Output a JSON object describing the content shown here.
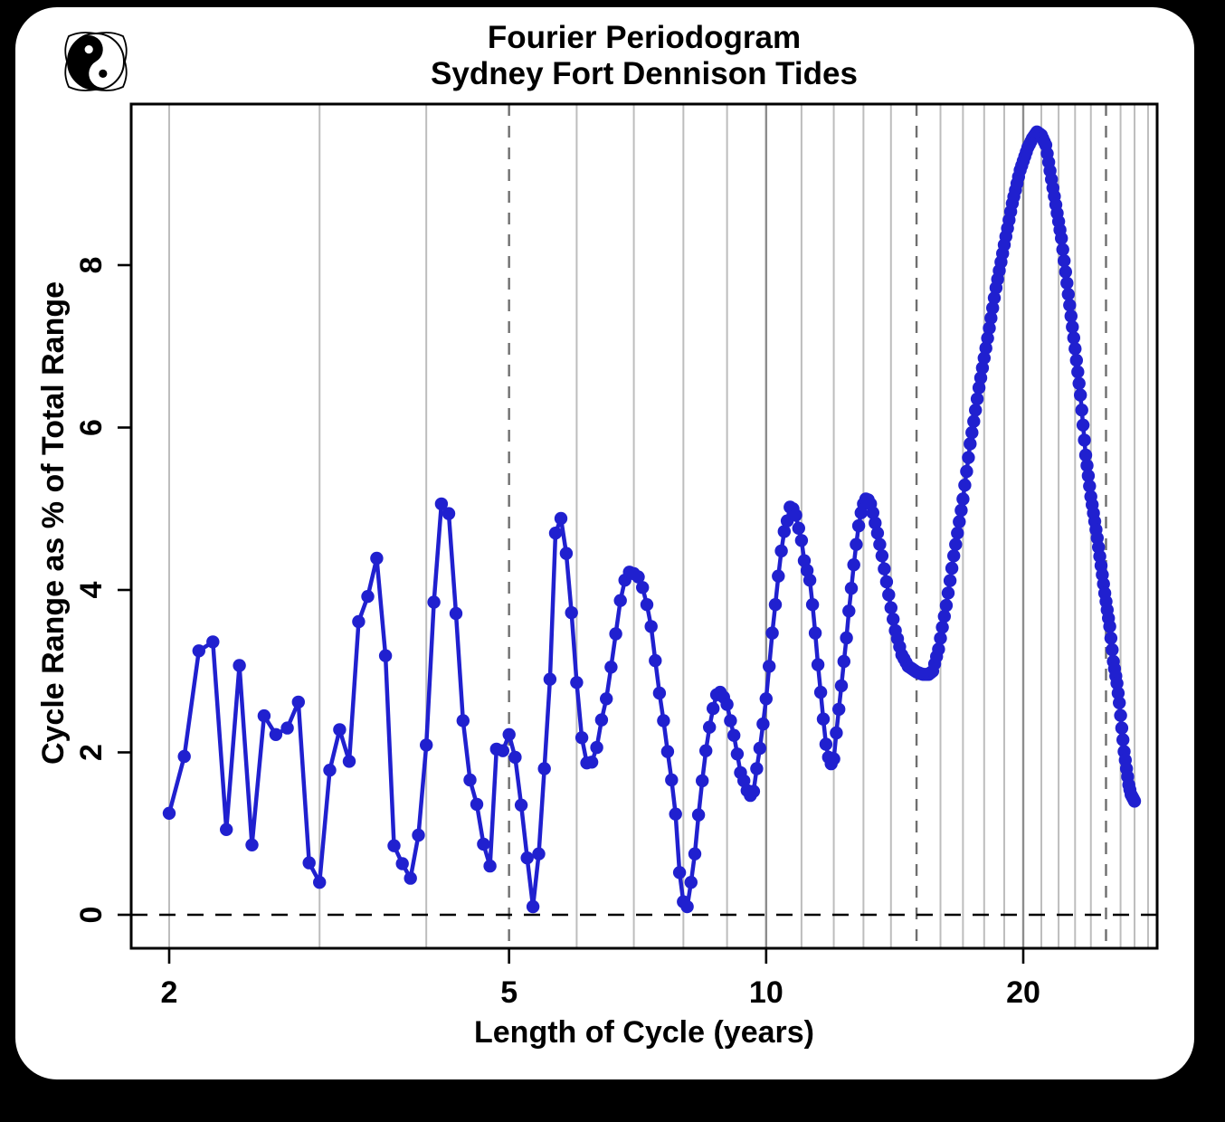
{
  "title": {
    "line1": "Fourier Periodogram",
    "line2": "Sydney Fort Dennison Tides"
  },
  "axes": {
    "x": {
      "label": "Length of Cycle (years)",
      "ticks": [
        2,
        5,
        10,
        20
      ],
      "scale": "log10",
      "range_years": [
        1.8,
        28.3
      ]
    },
    "y": {
      "label": "Cycle Range as % of Total Range",
      "ticks": [
        0,
        2,
        4,
        6,
        8
      ],
      "range": [
        -0.45,
        9.98
      ]
    }
  },
  "gridlines": {
    "years_solid": [
      2,
      3,
      4,
      6,
      7,
      8,
      9,
      11,
      12,
      13,
      14,
      16,
      17,
      18,
      19,
      21,
      22,
      23,
      24,
      26,
      27,
      28
    ],
    "years_dark": [
      10,
      20
    ],
    "years_dashed": [
      5,
      15,
      25
    ]
  },
  "zero_reference_line": {
    "value": 0,
    "style": "dashed",
    "color": "#000000"
  },
  "logo": {
    "name": "yin-yang owl logo"
  },
  "colors": {
    "series": "#2020cf",
    "grid": "#bdbdbd",
    "grid_dark": "#8d8d8d",
    "grid_dashed": "#6f6f6f",
    "box": "#000000",
    "background": "#ffffff",
    "frame": "#000000"
  },
  "chart_data": {
    "type": "line",
    "title": "Fourier Periodogram",
    "subtitle": "Sydney Fort Dennison Tides",
    "xlabel": "Length of Cycle (years)",
    "ylabel": "Cycle Range as % of Total Range",
    "x_scale": "log10",
    "xlim_years": [
      1.8,
      28.3
    ],
    "ylim": [
      -0.45,
      9.98
    ],
    "points": "one point per monthly cycle length, months 24 to 324 (2 to 27 years), linearly interpolated between keypoints",
    "month_range": [
      24,
      324
    ],
    "peak": {
      "cycle_years": 20.7,
      "value": 9.64
    },
    "keypoints_month_value": [
      [
        24,
        1.25
      ],
      [
        25,
        1.95
      ],
      [
        26,
        3.25
      ],
      [
        27,
        3.36
      ],
      [
        28,
        1.05
      ],
      [
        29,
        3.07
      ],
      [
        30,
        0.86
      ],
      [
        31,
        2.45
      ],
      [
        32,
        2.22
      ],
      [
        33,
        2.3
      ],
      [
        34,
        2.62
      ],
      [
        35,
        0.64
      ],
      [
        36,
        0.4
      ],
      [
        37,
        1.78
      ],
      [
        38,
        2.28
      ],
      [
        39,
        1.89
      ],
      [
        40,
        3.61
      ],
      [
        41,
        3.92
      ],
      [
        42,
        4.39
      ],
      [
        43,
        3.19
      ],
      [
        44,
        0.85
      ],
      [
        45,
        0.63
      ],
      [
        46,
        0.45
      ],
      [
        47,
        0.98
      ],
      [
        48,
        2.09
      ],
      [
        49,
        3.85
      ],
      [
        50,
        5.06
      ],
      [
        51,
        4.94
      ],
      [
        52,
        3.71
      ],
      [
        53,
        2.39
      ],
      [
        54,
        1.66
      ],
      [
        55,
        1.36
      ],
      [
        56,
        0.87
      ],
      [
        57,
        0.6
      ],
      [
        58,
        2.04
      ],
      [
        59,
        2.02
      ],
      [
        60,
        2.22
      ],
      [
        61,
        1.94
      ],
      [
        62,
        1.35
      ],
      [
        63,
        0.7
      ],
      [
        64,
        0.1
      ],
      [
        65,
        0.75
      ],
      [
        66,
        1.8
      ],
      [
        67,
        2.9
      ],
      [
        68,
        4.7
      ],
      [
        69,
        4.88
      ],
      [
        70,
        4.45
      ],
      [
        71,
        3.72
      ],
      [
        72,
        2.86
      ],
      [
        73,
        2.18
      ],
      [
        74,
        1.87
      ],
      [
        75,
        1.88
      ],
      [
        76,
        2.06
      ],
      [
        77,
        2.4
      ],
      [
        78,
        2.66
      ],
      [
        79,
        3.05
      ],
      [
        80,
        3.46
      ],
      [
        81,
        3.87
      ],
      [
        82,
        4.12
      ],
      [
        83,
        4.22
      ],
      [
        84,
        4.2
      ],
      [
        85,
        4.16
      ],
      [
        86,
        4.03
      ],
      [
        87,
        3.82
      ],
      [
        88,
        3.55
      ],
      [
        89,
        3.13
      ],
      [
        90,
        2.73
      ],
      [
        91,
        2.39
      ],
      [
        92,
        2.01
      ],
      [
        93,
        1.66
      ],
      [
        94,
        1.24
      ],
      [
        95,
        0.52
      ],
      [
        96,
        0.16
      ],
      [
        97,
        0.1
      ],
      [
        98,
        0.4
      ],
      [
        99,
        0.75
      ],
      [
        100,
        1.23
      ],
      [
        101,
        1.65
      ],
      [
        102,
        2.02
      ],
      [
        103,
        2.31
      ],
      [
        104,
        2.54
      ],
      [
        105,
        2.71
      ],
      [
        106,
        2.74
      ],
      [
        107,
        2.68
      ],
      [
        108,
        2.59
      ],
      [
        109,
        2.39
      ],
      [
        110,
        2.21
      ],
      [
        111,
        1.98
      ],
      [
        112,
        1.75
      ],
      [
        113,
        1.65
      ],
      [
        114,
        1.53
      ],
      [
        115,
        1.47
      ],
      [
        116,
        1.52
      ],
      [
        117,
        1.8
      ],
      [
        118,
        2.05
      ],
      [
        119,
        2.35
      ],
      [
        120,
        2.66
      ],
      [
        121,
        3.06
      ],
      [
        122,
        3.47
      ],
      [
        123,
        3.82
      ],
      [
        124,
        4.17
      ],
      [
        125,
        4.48
      ],
      [
        126,
        4.72
      ],
      [
        127,
        4.85
      ],
      [
        128,
        5.02
      ],
      [
        129,
        5.0
      ],
      [
        130,
        4.92
      ],
      [
        131,
        4.76
      ],
      [
        132,
        4.61
      ],
      [
        133,
        4.36
      ],
      [
        134,
        4.24
      ],
      [
        135,
        4.12
      ],
      [
        136,
        3.82
      ],
      [
        137,
        3.47
      ],
      [
        138,
        3.08
      ],
      [
        139,
        2.74
      ],
      [
        140,
        2.41
      ],
      [
        141,
        2.1
      ],
      [
        142,
        1.94
      ],
      [
        143,
        1.86
      ],
      [
        144,
        1.92
      ],
      [
        145,
        2.24
      ],
      [
        146,
        2.53
      ],
      [
        147,
        2.82
      ],
      [
        148,
        3.12
      ],
      [
        149,
        3.41
      ],
      [
        150,
        3.74
      ],
      [
        151,
        4.02
      ],
      [
        152,
        4.31
      ],
      [
        153,
        4.56
      ],
      [
        154,
        4.79
      ],
      [
        155,
        4.95
      ],
      [
        156,
        5.06
      ],
      [
        157,
        5.12
      ],
      [
        158,
        5.11
      ],
      [
        159,
        5.06
      ],
      [
        160,
        4.95
      ],
      [
        162,
        4.7
      ],
      [
        164,
        4.42
      ],
      [
        166,
        4.1
      ],
      [
        168,
        3.78
      ],
      [
        170,
        3.5
      ],
      [
        173,
        3.2
      ],
      [
        176,
        3.06
      ],
      [
        180,
        2.99
      ],
      [
        183,
        2.96
      ],
      [
        186,
        2.96
      ],
      [
        188,
        3.0
      ],
      [
        191,
        3.27
      ],
      [
        195,
        3.81
      ],
      [
        199,
        4.42
      ],
      [
        204,
        5.12
      ],
      [
        208,
        5.8
      ],
      [
        213,
        6.49
      ],
      [
        218,
        7.1
      ],
      [
        223,
        7.72
      ],
      [
        228,
        8.25
      ],
      [
        233,
        8.76
      ],
      [
        238,
        9.17
      ],
      [
        243,
        9.45
      ],
      [
        246,
        9.56
      ],
      [
        249,
        9.64
      ],
      [
        252,
        9.6
      ],
      [
        255,
        9.48
      ],
      [
        260,
        8.95
      ],
      [
        266,
        8.33
      ],
      [
        271,
        7.64
      ],
      [
        276,
        6.97
      ],
      [
        280,
        6.4
      ],
      [
        284,
        5.66
      ],
      [
        288,
        5.15
      ],
      [
        293,
        4.64
      ],
      [
        299,
        3.96
      ],
      [
        303,
        3.55
      ],
      [
        306,
        3.12
      ],
      [
        309,
        2.85
      ],
      [
        311,
        2.61
      ],
      [
        313,
        2.3
      ],
      [
        315,
        2.01
      ],
      [
        317,
        1.8
      ],
      [
        319,
        1.6
      ],
      [
        321,
        1.48
      ],
      [
        324,
        1.4
      ]
    ]
  }
}
